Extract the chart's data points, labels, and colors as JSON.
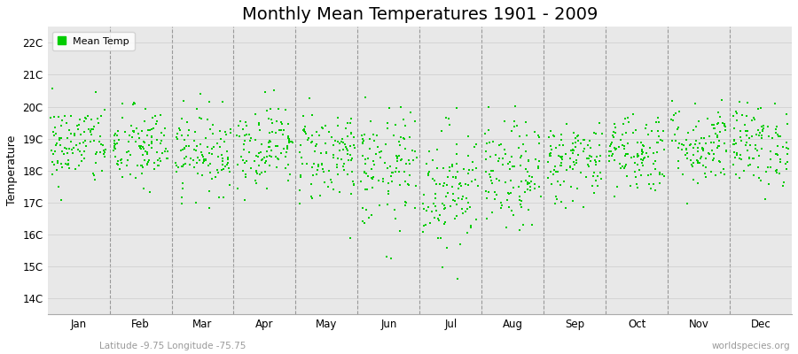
{
  "title": "Monthly Mean Temperatures 1901 - 2009",
  "ylabel": "Temperature",
  "xlabel_months": [
    "Jan",
    "Feb",
    "Mar",
    "Apr",
    "May",
    "Jun",
    "Jul",
    "Aug",
    "Sep",
    "Oct",
    "Nov",
    "Dec"
  ],
  "ytick_labels": [
    "14C",
    "15C",
    "16C",
    "17C",
    "18C",
    "19C",
    "20C",
    "21C",
    "22C"
  ],
  "ytick_values": [
    14,
    15,
    16,
    17,
    18,
    19,
    20,
    21,
    22
  ],
  "ylim": [
    13.5,
    22.5
  ],
  "dot_color": "#00cc00",
  "dot_size": 3,
  "figure_bg": "#ffffff",
  "plot_bg": "#e8e8e8",
  "legend_label": "Mean Temp",
  "subtitle_left": "Latitude -9.75 Longitude -75.75",
  "subtitle_right": "worldspecies.org",
  "title_fontsize": 14,
  "label_fontsize": 8.5,
  "start_year": 1901,
  "end_year": 2009,
  "seed": 42,
  "monthly_means": [
    18.8,
    18.7,
    18.6,
    18.8,
    18.5,
    18.0,
    17.5,
    17.8,
    18.3,
    18.6,
    18.8,
    18.8
  ],
  "monthly_stds": [
    0.65,
    0.65,
    0.65,
    0.65,
    0.75,
    0.95,
    1.0,
    0.85,
    0.65,
    0.65,
    0.65,
    0.65
  ]
}
